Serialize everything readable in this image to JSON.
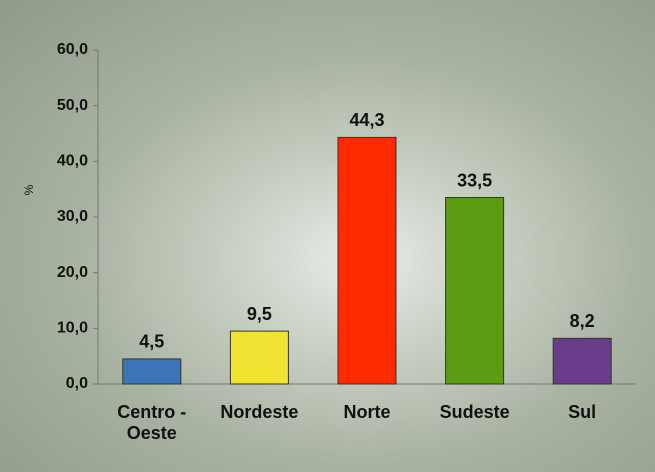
{
  "chart_data": {
    "type": "bar",
    "y_label": "%",
    "categories": [
      "Centro - Oeste",
      "Nordeste",
      "Norte",
      "Sudeste",
      "Sul"
    ],
    "values": [
      4.5,
      9.5,
      44.3,
      33.5,
      8.2
    ],
    "value_labels": [
      "4,5",
      "9,5",
      "44,3",
      "33,5",
      "8,2"
    ],
    "colors": [
      "#3c74b8",
      "#f2e232",
      "#ff2a00",
      "#5c9c12",
      "#6b3c8c"
    ],
    "ylim": [
      0,
      60
    ],
    "yticks": [
      {
        "value": 0,
        "label": "0,0"
      },
      {
        "value": 10,
        "label": "10,0"
      },
      {
        "value": 20,
        "label": "20,0"
      },
      {
        "value": 30,
        "label": "30,0"
      },
      {
        "value": 40,
        "label": "40,0"
      },
      {
        "value": 50,
        "label": "50,0"
      },
      {
        "value": 60,
        "label": "60,0"
      }
    ],
    "grid": false
  }
}
